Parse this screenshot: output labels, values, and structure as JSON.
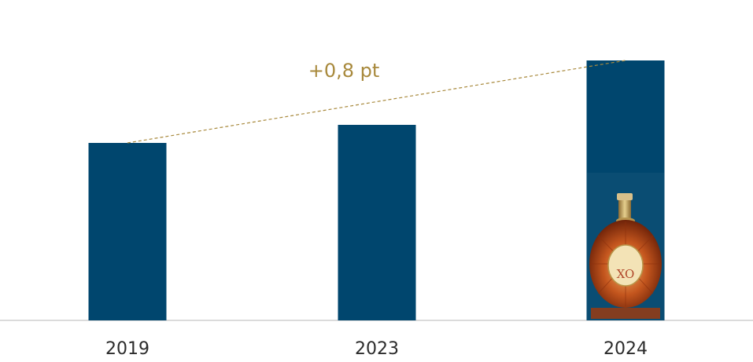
{
  "chart_data": {
    "type": "bar",
    "categories": [
      "2019",
      "2023",
      "2024"
    ],
    "values": [
      226,
      249,
      331
    ],
    "ylim": [
      0,
      340
    ],
    "grid": false,
    "colors": {
      "bar": "#00466e",
      "annotation": "#a8893c",
      "baseline": "#cfcfcf"
    },
    "annotation": {
      "text": "+0,8 pt",
      "from": "2019",
      "to": "2024",
      "style": "dashed trend line"
    },
    "image_in_bar": {
      "category": "2024",
      "icon": "cognac-bottle-xo",
      "label": "XO"
    }
  }
}
